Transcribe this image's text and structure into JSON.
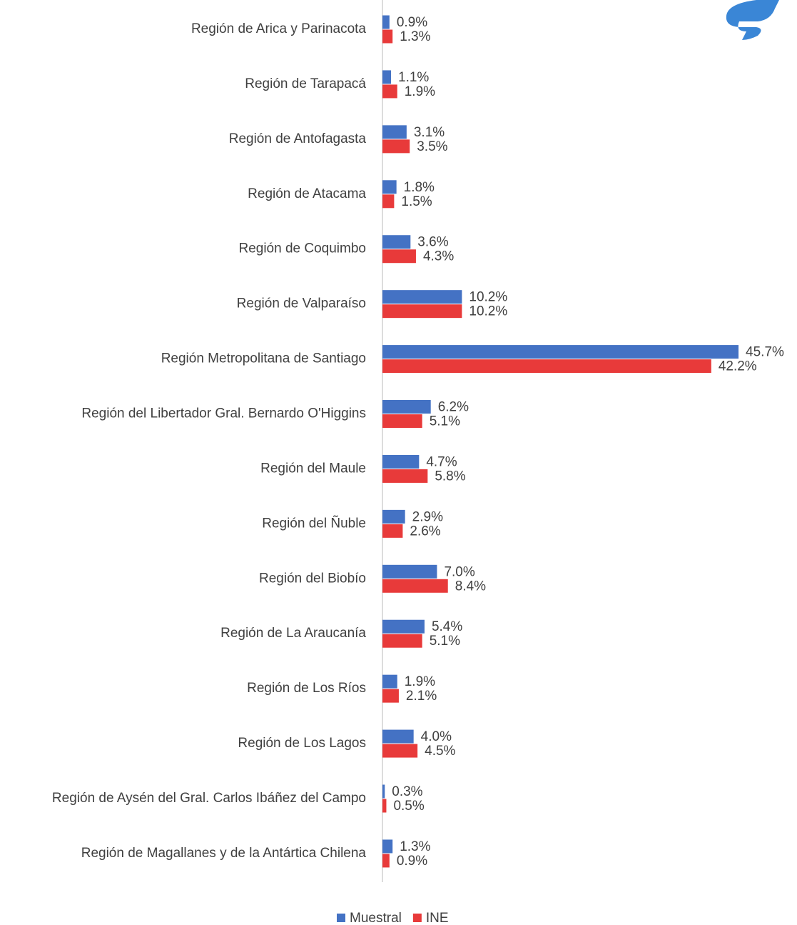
{
  "chart_data": {
    "type": "bar",
    "orientation": "horizontal",
    "categories": [
      "Región de Arica y Parinacota",
      "Región de Tarapacá",
      "Región de Antofagasta",
      "Región de Atacama",
      "Región de Coquimbo",
      "Región de Valparaíso",
      "Región Metropolitana de Santiago",
      "Región del Libertador Gral. Bernardo O'Higgins",
      "Región del Maule",
      "Región del Ñuble",
      "Región del Biobío",
      "Región de La Araucanía",
      "Región de Los Ríos",
      "Región de Los Lagos",
      "Región de Aysén del Gral. Carlos Ibáñez del Campo",
      "Región de Magallanes y de la Antártica Chilena"
    ],
    "series": [
      {
        "name": "Muestral",
        "color": "#4472c4",
        "values": [
          0.9,
          1.1,
          3.1,
          1.8,
          3.6,
          10.2,
          45.7,
          6.2,
          4.7,
          2.9,
          7.0,
          5.4,
          1.9,
          4.0,
          0.3,
          1.3
        ],
        "value_labels": [
          "0.9%",
          "1.1%",
          "3.1%",
          "1.8%",
          "3.6%",
          "10.2%",
          "45.7%",
          "6.2%",
          "4.7%",
          "2.9%",
          "7.0%",
          "5.4%",
          "1.9%",
          "4.0%",
          "0.3%",
          "1.3%"
        ]
      },
      {
        "name": "INE",
        "color": "#e83a3a",
        "values": [
          1.3,
          1.9,
          3.5,
          1.5,
          4.3,
          10.2,
          42.2,
          5.1,
          5.8,
          2.6,
          8.4,
          5.1,
          2.1,
          4.5,
          0.5,
          0.9
        ],
        "value_labels": [
          "1.3%",
          "1.9%",
          "3.5%",
          "1.5%",
          "4.3%",
          "10.2%",
          "42.2%",
          "5.1%",
          "5.8%",
          "2.6%",
          "8.4%",
          "5.1%",
          "2.1%",
          "4.5%",
          "0.5%",
          "0.9%"
        ]
      }
    ],
    "legend": "bottom"
  }
}
